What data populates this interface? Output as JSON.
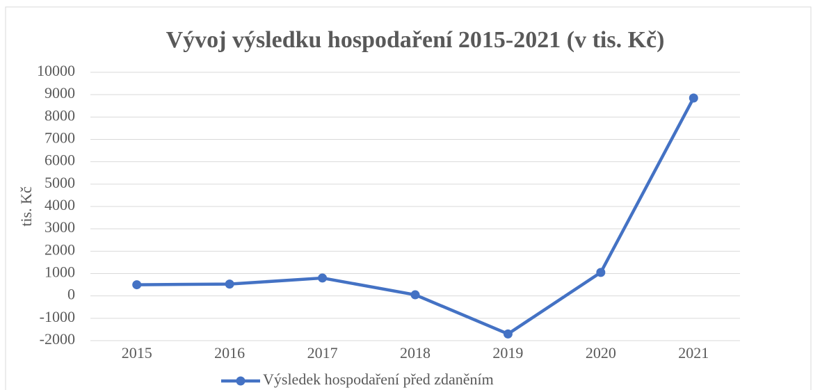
{
  "chart_data": {
    "type": "line",
    "title": "Vývoj výsledku hospodaření 2015-2021 (v tis. Kč)",
    "y_label": "tis. Kč",
    "categories": [
      "2015",
      "2016",
      "2017",
      "2018",
      "2019",
      "2020",
      "2021"
    ],
    "series": [
      {
        "name": "Výsledek hospodaření před zdaněním",
        "color": "#4472c4",
        "values": [
          500,
          530,
          800,
          50,
          -1700,
          1050,
          8850
        ]
      }
    ],
    "ylim": [
      -2000,
      10000
    ],
    "yticks": [
      -2000,
      -1000,
      0,
      1000,
      2000,
      3000,
      4000,
      5000,
      6000,
      7000,
      8000,
      9000,
      10000
    ],
    "grid": true,
    "legend": "bottom"
  }
}
